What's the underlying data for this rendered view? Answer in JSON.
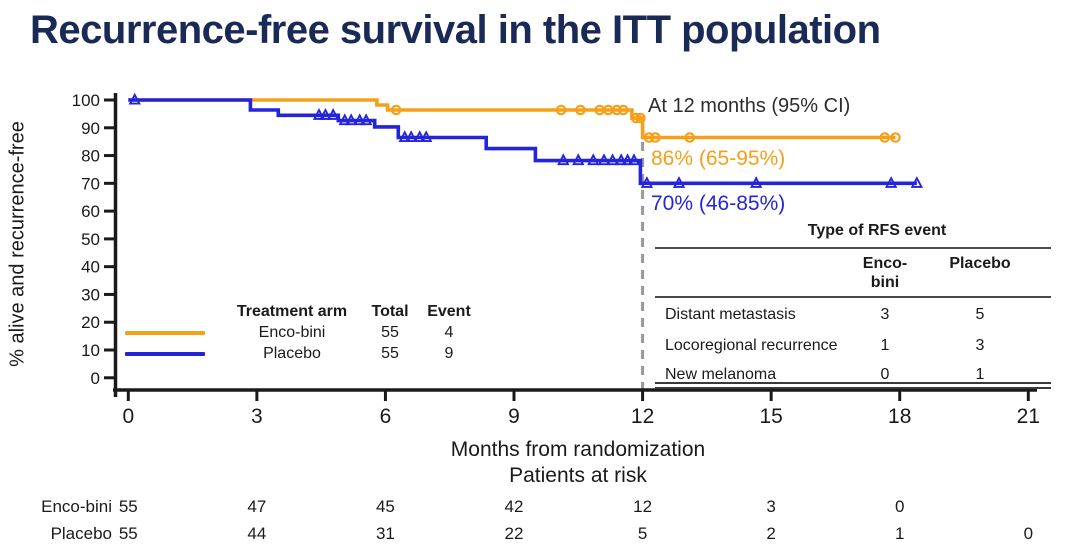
{
  "title": "Recurrence-free survival in the ITT population",
  "colors": {
    "enco": "#F6A01A",
    "placebo": "#2424DC",
    "title_navy": "#1A2A57",
    "annotation_text": "#2d2d2d",
    "dash_gray": "#999999",
    "axis_black": "#1a1a1a"
  },
  "annotations": {
    "header": "At 12 months (95% CI)",
    "enco": "86% (65-95%)",
    "placebo": "70% (46-85%)"
  },
  "chart_data": {
    "type": "line",
    "subtype": "kaplan-meier-step",
    "x_axis": {
      "title": "Months from randomization",
      "ticks": [
        0,
        3,
        6,
        9,
        12,
        15,
        18,
        21
      ],
      "range": [
        0,
        21
      ]
    },
    "y_axis": {
      "title": "% alive and recurrence-free",
      "ticks": [
        0,
        10,
        20,
        30,
        40,
        50,
        60,
        70,
        80,
        90,
        100
      ],
      "range": [
        0,
        100
      ]
    },
    "reference_line_x": 12,
    "legend_position": "inside-lower-left",
    "grid": false,
    "series": [
      {
        "name": "Enco-bini",
        "color_key": "enco",
        "marker": "circle",
        "steps": [
          [
            0,
            100
          ],
          [
            5.8,
            98.2
          ],
          [
            6.05,
            96.4
          ],
          [
            11.75,
            93.5
          ],
          [
            12.0,
            86.5
          ]
        ],
        "end_month": 17.9,
        "censor_marks": [
          [
            6.25,
            96.4
          ],
          [
            10.1,
            96.4
          ],
          [
            10.55,
            96.4
          ],
          [
            11.0,
            96.4
          ],
          [
            11.2,
            96.4
          ],
          [
            11.4,
            96.4
          ],
          [
            11.55,
            96.4
          ],
          [
            11.85,
            93.5
          ],
          [
            11.95,
            93.5
          ],
          [
            12.15,
            86.5
          ],
          [
            12.3,
            86.5
          ],
          [
            13.1,
            86.5
          ],
          [
            17.65,
            86.5
          ],
          [
            17.9,
            86.5
          ]
        ],
        "at_12_months": "86% (65-95%)"
      },
      {
        "name": "Placebo",
        "color_key": "placebo",
        "marker": "triangle",
        "steps": [
          [
            0,
            100
          ],
          [
            2.85,
            96.4
          ],
          [
            3.5,
            94.5
          ],
          [
            4.9,
            92.6
          ],
          [
            5.75,
            90.3
          ],
          [
            6.3,
            86.5
          ],
          [
            8.35,
            82.5
          ],
          [
            9.5,
            78.2
          ],
          [
            11.95,
            70
          ]
        ],
        "end_month": 18.4,
        "censor_marks": [
          [
            0.15,
            100
          ],
          [
            4.45,
            94.5
          ],
          [
            4.6,
            94.5
          ],
          [
            4.78,
            94.5
          ],
          [
            5.05,
            92.6
          ],
          [
            5.2,
            92.6
          ],
          [
            5.4,
            92.6
          ],
          [
            5.55,
            92.6
          ],
          [
            6.45,
            86.5
          ],
          [
            6.6,
            86.5
          ],
          [
            6.8,
            86.5
          ],
          [
            6.95,
            86.5
          ],
          [
            10.15,
            78.2
          ],
          [
            10.5,
            78.2
          ],
          [
            10.85,
            78.2
          ],
          [
            11.1,
            78.2
          ],
          [
            11.3,
            78.2
          ],
          [
            11.5,
            78.2
          ],
          [
            11.65,
            78.2
          ],
          [
            11.8,
            78.2
          ],
          [
            12.1,
            70
          ],
          [
            12.85,
            70
          ],
          [
            14.65,
            70
          ],
          [
            17.8,
            70
          ],
          [
            18.4,
            70
          ]
        ],
        "at_12_months": "70% (46-85%)"
      }
    ]
  },
  "legend": {
    "headers": {
      "arm": "Treatment arm",
      "total": "Total",
      "event": "Event"
    },
    "rows": [
      {
        "arm": "Enco-bini",
        "total": "55",
        "event": "4",
        "color_key": "enco"
      },
      {
        "arm": "Placebo",
        "total": "55",
        "event": "9",
        "color_key": "placebo"
      }
    ]
  },
  "rfs_table": {
    "title": "Type of RFS event",
    "columns": [
      "Enco-bini",
      "Placebo"
    ],
    "rows": [
      {
        "label": "Distant metastasis",
        "enco": "3",
        "placebo": "5"
      },
      {
        "label": "Locoregional recurrence",
        "enco": "1",
        "placebo": "3"
      },
      {
        "label": "New melanoma",
        "enco": "0",
        "placebo": "1"
      }
    ]
  },
  "risk_table": {
    "title": "Patients at risk",
    "rows": [
      {
        "label": "Enco-bini",
        "values": [
          55,
          47,
          45,
          42,
          12,
          3,
          0
        ]
      },
      {
        "label": "Placebo",
        "values": [
          55,
          44,
          31,
          22,
          5,
          2,
          1,
          0
        ]
      }
    ]
  }
}
